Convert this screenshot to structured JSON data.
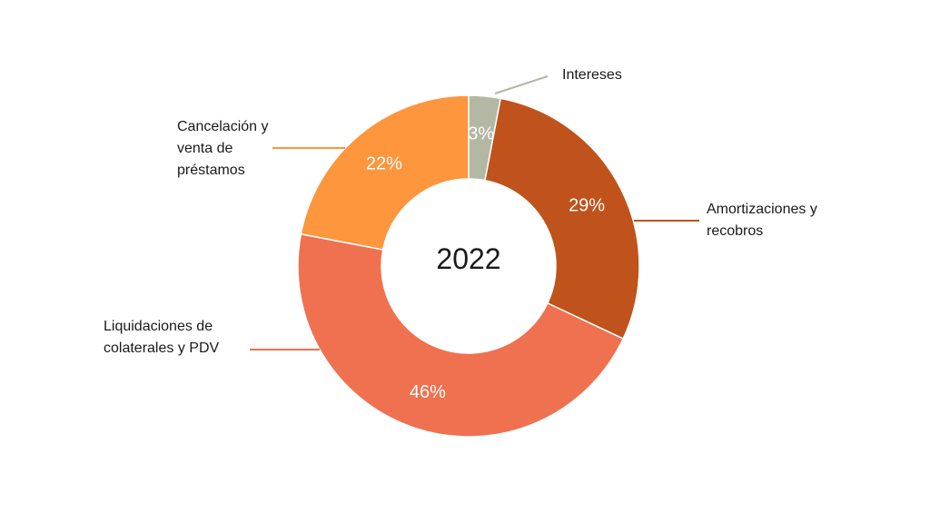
{
  "chart_data": {
    "type": "pie",
    "variant": "donut",
    "center_label": "2022",
    "slices": [
      {
        "name": "Intereses",
        "value": 3,
        "label": "3%",
        "color": "#b3b7a4"
      },
      {
        "name": "Amortizaciones y recobros",
        "value": 29,
        "label": "29%",
        "color": "#c0521b"
      },
      {
        "name": "Liquidaciones de colaterales y PDV",
        "value": 46,
        "label": "46%",
        "color": "#f07150"
      },
      {
        "name": "Cancelación y venta de préstamos",
        "value": 22,
        "label": "22%",
        "color": "#fd963d"
      }
    ],
    "legend": "callout-labels",
    "text_color": "#1a1a1a",
    "value_label_color": "#ffffff"
  },
  "callouts": {
    "intereses": "Intereses",
    "amortizaciones": "Amortizaciones y\nrecobros",
    "liquidaciones": "Liquidaciones de\ncolaterales y PDV",
    "cancelacion": "Cancelación y\nventa de\npréstamos"
  }
}
